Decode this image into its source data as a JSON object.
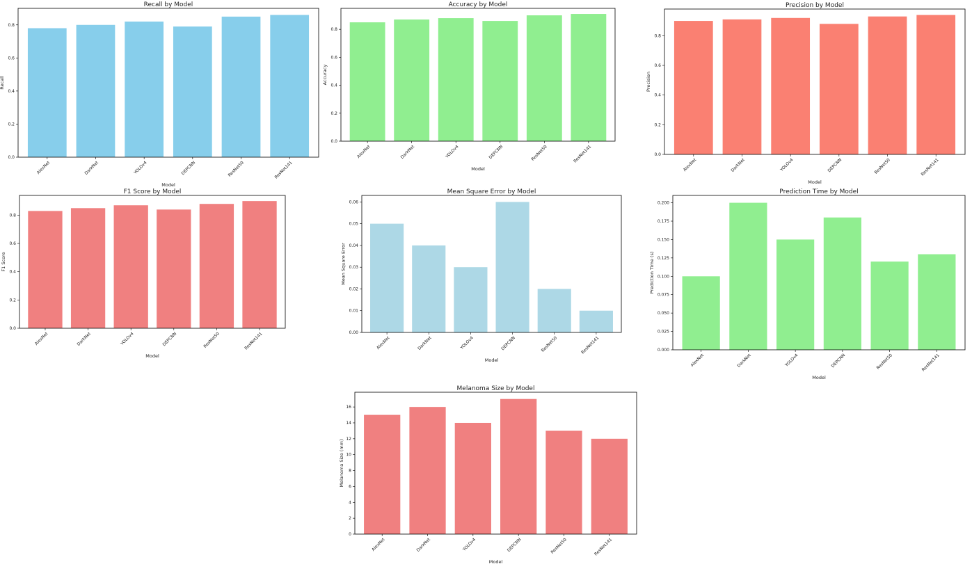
{
  "chart_data": [
    {
      "type": "bar",
      "title": "Recall by Model",
      "xlabel": "Model",
      "ylabel": "Recall",
      "categories": [
        "AlexNet",
        "DarkNet",
        "YOLOv4",
        "DEPCNN",
        "ResNet50",
        "ResNet141"
      ],
      "values": [
        0.78,
        0.8,
        0.82,
        0.79,
        0.85,
        0.86
      ],
      "ylim": [
        0,
        0.9
      ],
      "yticks": [
        0.0,
        0.2,
        0.4,
        0.6,
        0.8
      ],
      "ytick_labels": [
        "0.0",
        "0.2",
        "0.4",
        "0.6",
        "0.8"
      ],
      "color": "#87CEEB",
      "grid": false
    },
    {
      "type": "bar",
      "title": "Accuracy by Model",
      "xlabel": "Model",
      "ylabel": "Accuracy",
      "categories": [
        "AlexNet",
        "DarkNet",
        "YOLOv4",
        "DEPCNN",
        "ResNet50",
        "ResNet141"
      ],
      "values": [
        0.85,
        0.87,
        0.88,
        0.86,
        0.9,
        0.91
      ],
      "ylim": [
        0,
        0.95
      ],
      "yticks": [
        0.0,
        0.2,
        0.4,
        0.6,
        0.8
      ],
      "ytick_labels": [
        "0.0",
        "0.2",
        "0.4",
        "0.6",
        "0.8"
      ],
      "color": "#90EE90",
      "grid": false
    },
    {
      "type": "bar",
      "title": "Precision by Model",
      "xlabel": "Model",
      "ylabel": "Precision",
      "categories": [
        "AlexNet",
        "DarkNet",
        "YOLOv4",
        "DEPCNN",
        "ResNet50",
        "ResNet141"
      ],
      "values": [
        0.9,
        0.91,
        0.92,
        0.88,
        0.93,
        0.94
      ],
      "ylim": [
        0,
        0.98
      ],
      "yticks": [
        0.0,
        0.2,
        0.4,
        0.6,
        0.8
      ],
      "ytick_labels": [
        "0.0",
        "0.2",
        "0.4",
        "0.6",
        "0.8"
      ],
      "color": "#FA8072",
      "grid": false
    },
    {
      "type": "bar",
      "title": "F1 Score by Model",
      "xlabel": "Model",
      "ylabel": "F1 Score",
      "categories": [
        "AlexNet",
        "DarkNet",
        "YOLOv4",
        "DEPCNN",
        "ResNet50",
        "ResNet141"
      ],
      "values": [
        0.83,
        0.85,
        0.87,
        0.84,
        0.88,
        0.9
      ],
      "ylim": [
        0,
        0.94
      ],
      "yticks": [
        0.0,
        0.2,
        0.4,
        0.6,
        0.8
      ],
      "ytick_labels": [
        "0.0",
        "0.2",
        "0.4",
        "0.6",
        "0.8"
      ],
      "color": "#F08080",
      "grid": false
    },
    {
      "type": "bar",
      "title": "Mean Square Error by Model",
      "xlabel": "Model",
      "ylabel": "Mean Square Error",
      "categories": [
        "AlexNet",
        "DarkNet",
        "YOLOv4",
        "DEPCNN",
        "ResNet50",
        "ResNet141"
      ],
      "values": [
        0.05,
        0.04,
        0.03,
        0.06,
        0.02,
        0.01
      ],
      "ylim": [
        0,
        0.063
      ],
      "yticks": [
        0.0,
        0.01,
        0.02,
        0.03,
        0.04,
        0.05,
        0.06
      ],
      "ytick_labels": [
        "0.00",
        "0.01",
        "0.02",
        "0.03",
        "0.04",
        "0.05",
        "0.06"
      ],
      "color": "#ADD8E6",
      "grid": false
    },
    {
      "type": "bar",
      "title": "Prediction Time by Model",
      "xlabel": "Model",
      "ylabel": "Prediction Time (s)",
      "categories": [
        "AlexNet",
        "DarkNet",
        "YOLOv4",
        "DEPCNN",
        "ResNet50",
        "ResNet141"
      ],
      "values": [
        0.1,
        0.2,
        0.15,
        0.18,
        0.12,
        0.13
      ],
      "ylim": [
        0,
        0.21
      ],
      "yticks": [
        0.0,
        0.025,
        0.05,
        0.075,
        0.1,
        0.125,
        0.15,
        0.175,
        0.2
      ],
      "ytick_labels": [
        "0.000",
        "0.025",
        "0.050",
        "0.075",
        "0.100",
        "0.125",
        "0.150",
        "0.175",
        "0.200"
      ],
      "color": "#90EE90",
      "grid": false
    },
    {
      "type": "bar",
      "title": "Melanoma Size by Model",
      "xlabel": "Model",
      "ylabel": "Melanoma Size (mm)",
      "categories": [
        "AlexNet",
        "DarkNet",
        "YOLOv4",
        "DEPCNN",
        "ResNet50",
        "ResNet141"
      ],
      "values": [
        15,
        16,
        14,
        17,
        13,
        12
      ],
      "ylim": [
        0,
        17.85
      ],
      "yticks": [
        0,
        2,
        4,
        6,
        8,
        10,
        12,
        14,
        16
      ],
      "ytick_labels": [
        "0",
        "2",
        "4",
        "6",
        "8",
        "10",
        "12",
        "14",
        "16"
      ],
      "color": "#F08080",
      "grid": false
    }
  ]
}
